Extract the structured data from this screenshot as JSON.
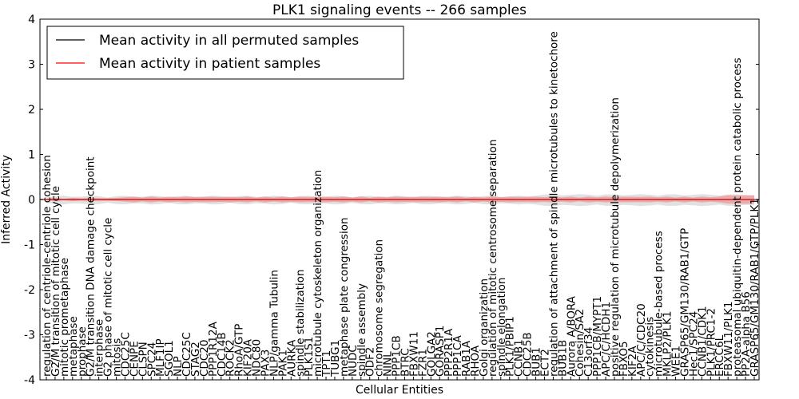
{
  "chart_data": {
    "type": "line",
    "title": "PLK1 signaling events -- 266 samples",
    "xlabel": "Cellular Entities",
    "ylabel": "Inferred Activity",
    "ylim": [
      -4,
      4
    ],
    "yticks": [
      -4,
      -3,
      -2,
      -1,
      0,
      1,
      2,
      3,
      4
    ],
    "grid": false,
    "legend_position": "top-left",
    "series": [
      {
        "name": "Mean activity in all permuted samples",
        "color": "#000000",
        "baseline": 0.0
      },
      {
        "name": "Mean activity in patient samples",
        "color": "#ff0000",
        "baseline": 0.0
      }
    ],
    "categories": [
      "regulation of centriole-centriole cohesion",
      "G2/M transition of mitotic cell cycle",
      "mitotic prometaphase",
      "metaphase",
      "prophase",
      "G2/M transition DNA damage checkpoint",
      "interphase",
      "G2 phase of mitotic cell cycle",
      "mitosis",
      "CDC25C",
      "CENPE",
      "CLSPN",
      "SPC24",
      "MLF1IP",
      "SGOL1",
      "NLP",
      "CDC25C",
      "STAG2",
      "CDC20",
      "PPP1R12A",
      "CDC14B",
      "ROCK2",
      "RhoA/GTP",
      "KIF20A",
      "NDC80",
      "PAX3",
      "NLP/gamma Tubulin",
      "PAK1",
      "AURKA",
      "spindle stabilization",
      "PLK1S1",
      "microtubule cytoskeleton organization",
      "TPT1",
      "TUBG1",
      "metaphase plate congression",
      "NUDC",
      "spindle assembly",
      "ODF2",
      "chromosome segregation",
      "NINL",
      "PPP1CB",
      "BTRC",
      "FBXW11",
      "FZR1",
      "GOLGA2",
      "GORASP1",
      "PPP2R1A",
      "PPP1CA",
      "RAB1A",
      "RHOA",
      "Golgi organization",
      "regulation of mitotic centrosome separation",
      "spindle elongation",
      "PLK1/PBIP1",
      "CCNB1",
      "CDC25B",
      "BUB1",
      "ECT2",
      "regulation of attachment of spindle microtubules to kinetochore",
      "BUB1B",
      "Aurora A/BORA",
      "Cohesin/SA2",
      "C13orf34",
      "PPP1CB/MYPT1",
      "APC/C/HCDH1",
      "positive regulation of microtubule depolymerization",
      "FBXO5",
      "KIF2A",
      "APC/C/CDC20",
      "cytokinesis",
      "microtubule-based process",
      "MKLP2/PLK1",
      "WEE1",
      "GRASP65/GM130/RAB1/GTP",
      "Hec1/SPC24",
      "CCNB1/CDK1",
      "PLK1/PRC1-2",
      "ERCC6L",
      "FBXW11/PLK1",
      "proteasomal ubiquitin-dependent protein catabolic process",
      "PP2A-alpha B56",
      "GRASP65/GM130/RAB1/GTP/PLK1"
    ]
  }
}
